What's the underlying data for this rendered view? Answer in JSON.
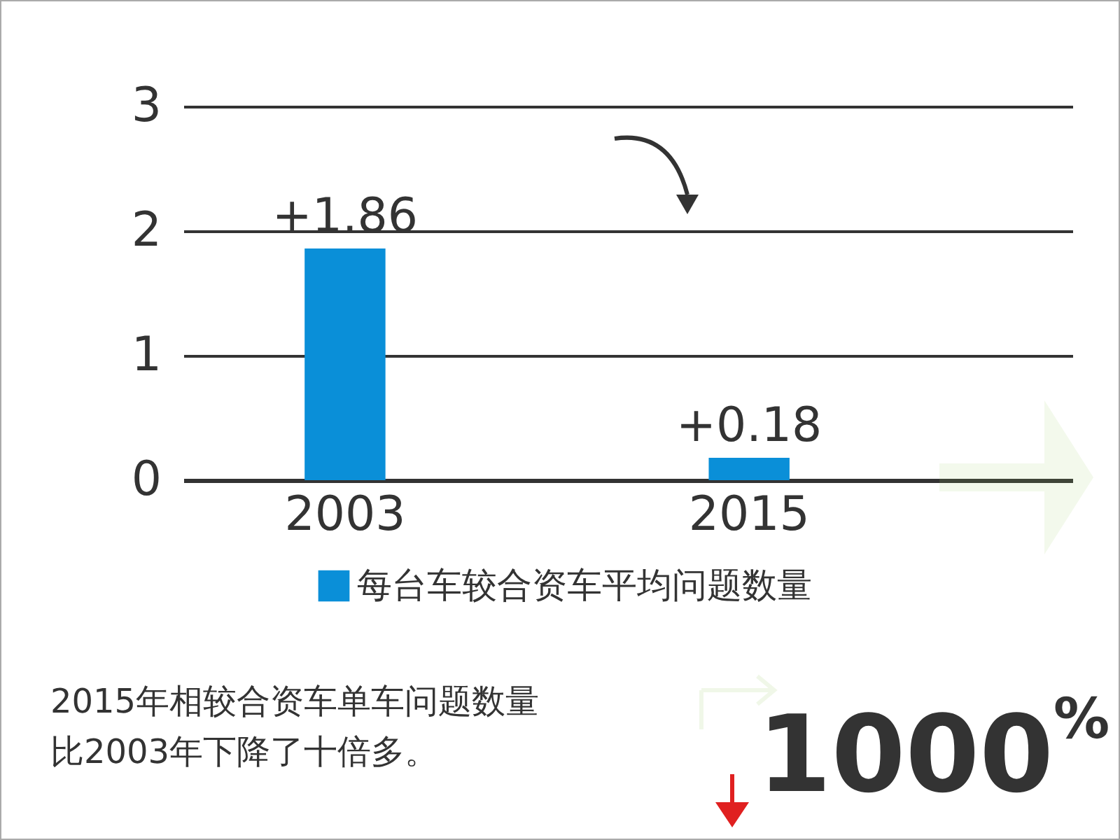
{
  "chart_data": {
    "type": "bar",
    "categories": [
      "2003",
      "2015"
    ],
    "series": [
      {
        "name": "每台车较合资车平均问题数量",
        "color": "#0a8fd8",
        "values": [
          1.86,
          0.18
        ],
        "value_labels": [
          "+1.86",
          "+0.18"
        ]
      }
    ],
    "ylim": [
      0,
      3
    ],
    "yticks": [
      0,
      1,
      2,
      3
    ],
    "grid": "y",
    "legend": "bottom",
    "annotations": [
      "2015年相较合资车单车问题数量比2003年下降了十倍多。",
      "1000$^{%}$"
    ]
  }
}
